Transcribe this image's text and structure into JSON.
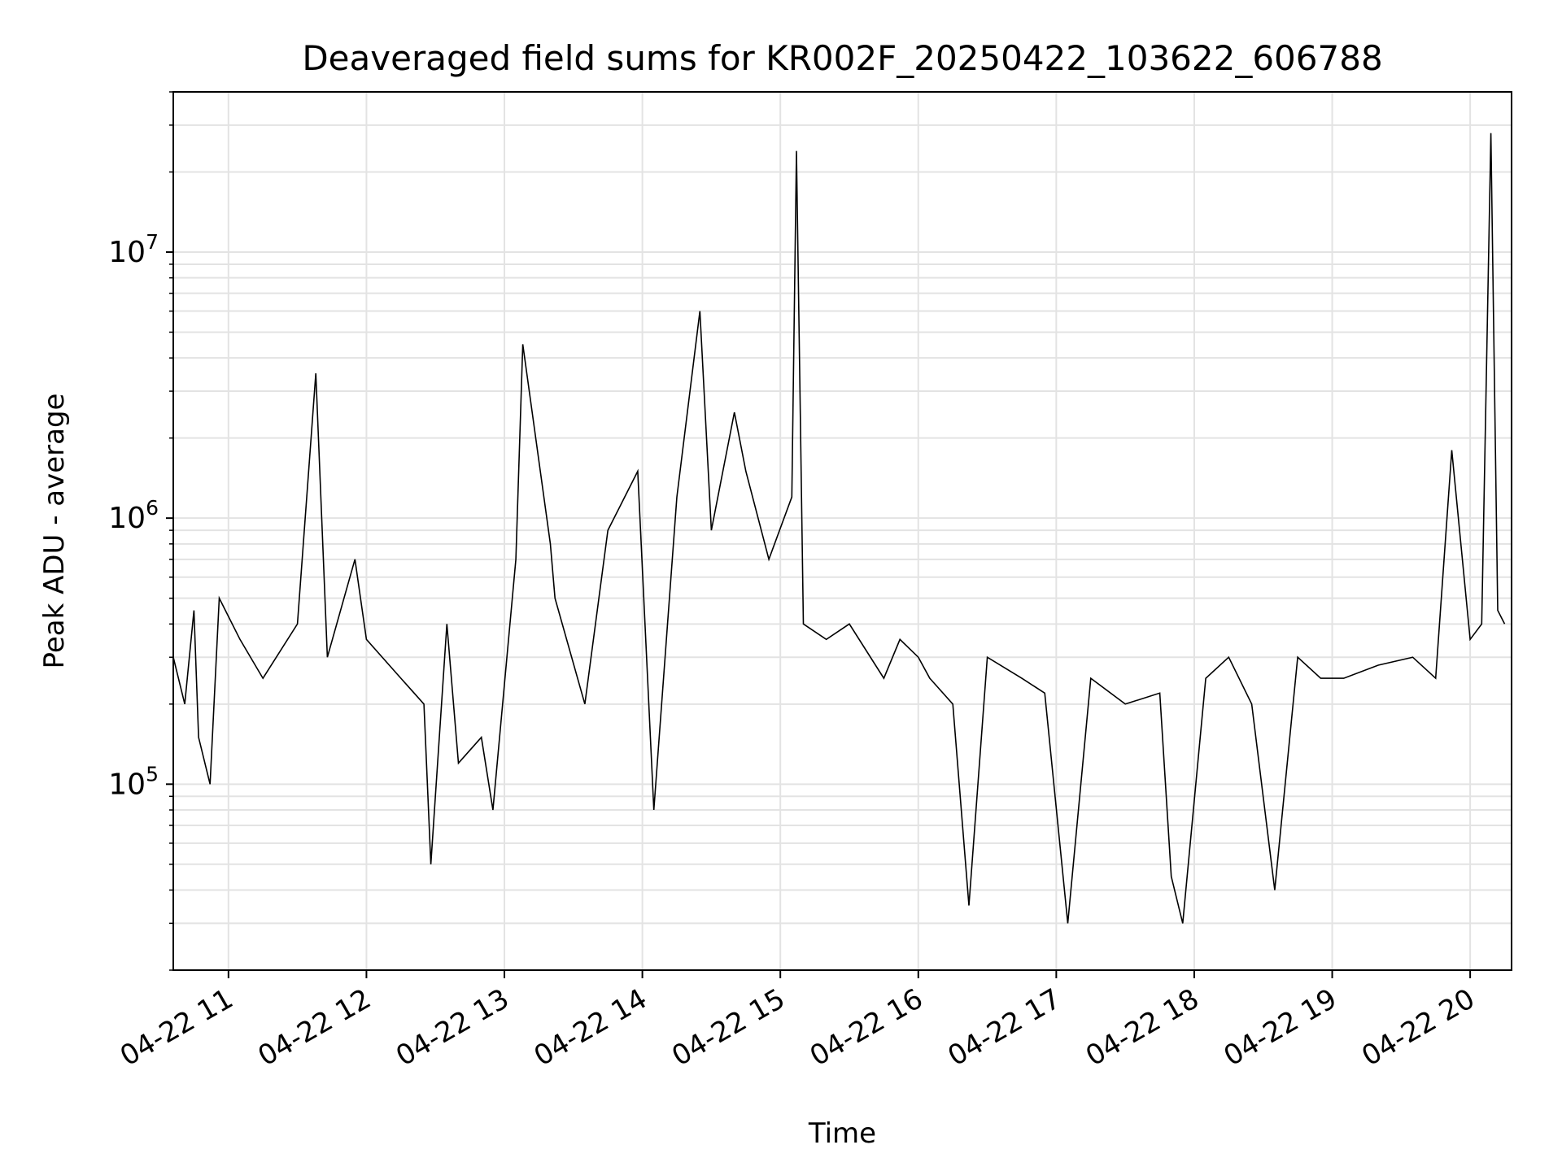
{
  "chart_data": {
    "type": "line",
    "title": "Deaveraged field sums for KR002F_20250422_103622_606788",
    "xlabel": "Time",
    "ylabel": "Peak ADU - average",
    "y_scale": "log",
    "ylim": [
      20000,
      40000000
    ],
    "xlim": [
      "2025-04-22 10:36",
      "2025-04-22 20:18"
    ],
    "grid": true,
    "line_color": "#000000",
    "x_ticks": [
      {
        "value": "2025-04-22 11:00",
        "label": "04-22 11"
      },
      {
        "value": "2025-04-22 12:00",
        "label": "04-22 12"
      },
      {
        "value": "2025-04-22 13:00",
        "label": "04-22 13"
      },
      {
        "value": "2025-04-22 14:00",
        "label": "04-22 14"
      },
      {
        "value": "2025-04-22 15:00",
        "label": "04-22 15"
      },
      {
        "value": "2025-04-22 16:00",
        "label": "04-22 16"
      },
      {
        "value": "2025-04-22 17:00",
        "label": "04-22 17"
      },
      {
        "value": "2025-04-22 18:00",
        "label": "04-22 18"
      },
      {
        "value": "2025-04-22 19:00",
        "label": "04-22 19"
      },
      {
        "value": "2025-04-22 20:00",
        "label": "04-22 20"
      }
    ],
    "y_ticks": [
      {
        "value": 100000,
        "base": "10",
        "exp": "5"
      },
      {
        "value": 1000000,
        "base": "10",
        "exp": "6"
      },
      {
        "value": 10000000,
        "base": "10",
        "exp": "7"
      }
    ],
    "series": [
      {
        "x": [
          "2025-04-22 10:36",
          "2025-04-22 10:41",
          "2025-04-22 10:45",
          "2025-04-22 10:47",
          "2025-04-22 10:52",
          "2025-04-22 10:56",
          "2025-04-22 11:05",
          "2025-04-22 11:15",
          "2025-04-22 11:30",
          "2025-04-22 11:38",
          "2025-04-22 11:43",
          "2025-04-22 11:55",
          "2025-04-22 12:00",
          "2025-04-22 12:15",
          "2025-04-22 12:25",
          "2025-04-22 12:28",
          "2025-04-22 12:35",
          "2025-04-22 12:40",
          "2025-04-22 12:50",
          "2025-04-22 12:55",
          "2025-04-22 13:05",
          "2025-04-22 13:08",
          "2025-04-22 13:20",
          "2025-04-22 13:22",
          "2025-04-22 13:35",
          "2025-04-22 13:45",
          "2025-04-22 13:58",
          "2025-04-22 14:05",
          "2025-04-22 14:15",
          "2025-04-22 14:25",
          "2025-04-22 14:30",
          "2025-04-22 14:40",
          "2025-04-22 14:45",
          "2025-04-22 14:55",
          "2025-04-22 15:05",
          "2025-04-22 15:07",
          "2025-04-22 15:10",
          "2025-04-22 15:20",
          "2025-04-22 15:30",
          "2025-04-22 15:45",
          "2025-04-22 15:52",
          "2025-04-22 16:00",
          "2025-04-22 16:05",
          "2025-04-22 16:15",
          "2025-04-22 16:22",
          "2025-04-22 16:30",
          "2025-04-22 16:45",
          "2025-04-22 16:55",
          "2025-04-22 17:05",
          "2025-04-22 17:15",
          "2025-04-22 17:30",
          "2025-04-22 17:45",
          "2025-04-22 17:50",
          "2025-04-22 17:55",
          "2025-04-22 18:05",
          "2025-04-22 18:15",
          "2025-04-22 18:25",
          "2025-04-22 18:35",
          "2025-04-22 18:45",
          "2025-04-22 18:55",
          "2025-04-22 19:05",
          "2025-04-22 19:20",
          "2025-04-22 19:35",
          "2025-04-22 19:45",
          "2025-04-22 19:52",
          "2025-04-22 20:00",
          "2025-04-22 20:05",
          "2025-04-22 20:09",
          "2025-04-22 20:12",
          "2025-04-22 20:15"
        ],
        "y": [
          300000,
          200000,
          450000,
          150000,
          100000,
          500000,
          350000,
          250000,
          400000,
          3500000,
          300000,
          700000,
          350000,
          250000,
          200000,
          50000,
          400000,
          120000,
          150000,
          80000,
          700000,
          4500000,
          800000,
          500000,
          200000,
          900000,
          1500000,
          80000,
          1200000,
          6000000,
          900000,
          2500000,
          1500000,
          700000,
          1200000,
          24000000,
          400000,
          350000,
          400000,
          250000,
          350000,
          300000,
          250000,
          200000,
          35000,
          300000,
          250000,
          220000,
          30000,
          250000,
          200000,
          220000,
          45000,
          30000,
          250000,
          300000,
          200000,
          40000,
          300000,
          250000,
          250000,
          280000,
          300000,
          250000,
          1800000,
          350000,
          400000,
          28000000,
          450000,
          400000
        ]
      }
    ]
  }
}
